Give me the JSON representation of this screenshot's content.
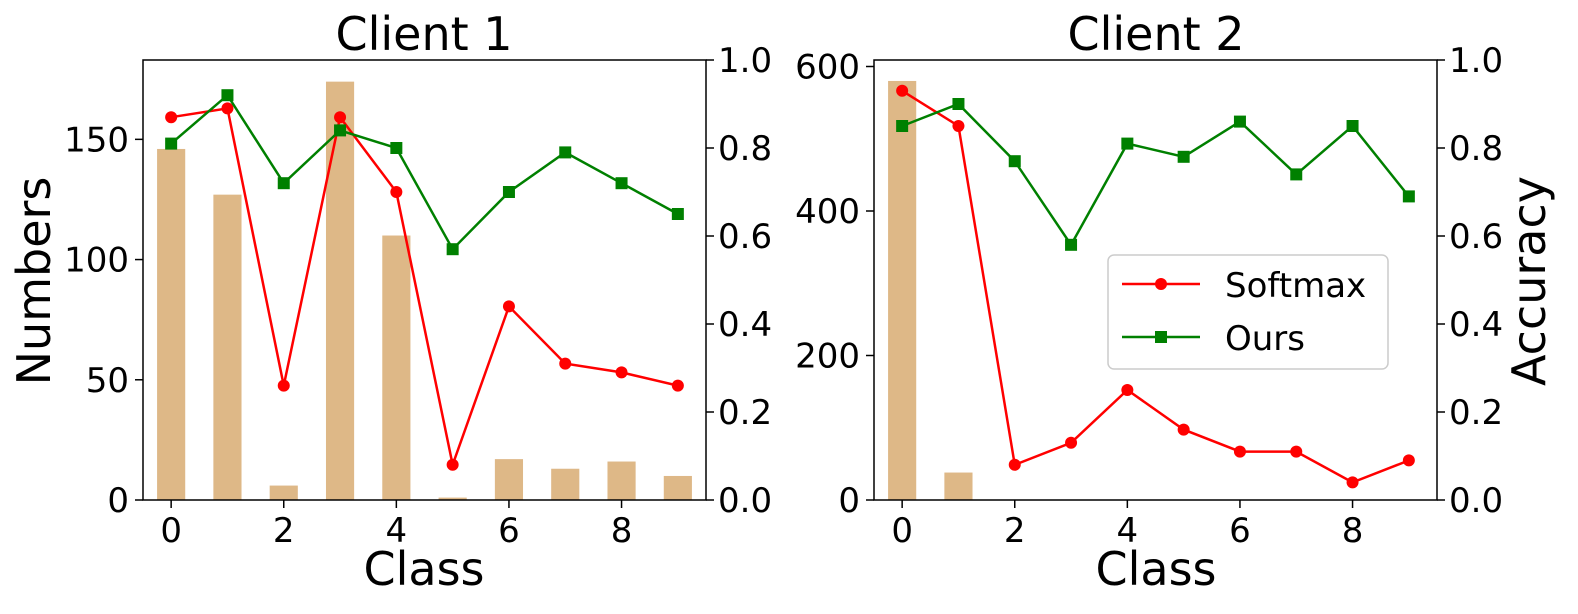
{
  "figure": {
    "legend": {
      "entries": [
        {
          "label": "Softmax",
          "color": "#ff0000",
          "marker": "circle"
        },
        {
          "label": "Ours",
          "color": "#008000",
          "marker": "square"
        }
      ]
    }
  },
  "colors": {
    "bars": "#deb887",
    "softmax": "#ff0000",
    "ours": "#008000"
  },
  "chart_data": [
    {
      "type": "bar+line",
      "title": "Client 1",
      "xlabel": "Class",
      "ylabel": "Numbers",
      "y2label": "",
      "categories": [
        0,
        1,
        2,
        3,
        4,
        5,
        6,
        7,
        8,
        9
      ],
      "xticks": [
        "0",
        "2",
        "4",
        "6",
        "8"
      ],
      "ylim": [
        0,
        183
      ],
      "yticks": [
        "0",
        "50",
        "100",
        "150"
      ],
      "y2lim": [
        0,
        1.0
      ],
      "y2ticks": [
        "0.0",
        "0.2",
        "0.4",
        "0.6",
        "0.8",
        "1.0"
      ],
      "bars": {
        "name": "Numbers",
        "values": [
          146,
          127,
          6,
          174,
          110,
          1,
          17,
          13,
          16,
          10
        ]
      },
      "series": [
        {
          "name": "Softmax",
          "axis": "right",
          "values": [
            0.87,
            0.89,
            0.26,
            0.87,
            0.7,
            0.08,
            0.44,
            0.31,
            0.29,
            0.26
          ]
        },
        {
          "name": "Ours",
          "axis": "right",
          "values": [
            0.81,
            0.92,
            0.72,
            0.84,
            0.8,
            0.57,
            0.7,
            0.79,
            0.72,
            0.65
          ]
        }
      ],
      "legend": false
    },
    {
      "type": "bar+line",
      "title": "Client 2",
      "xlabel": "Class",
      "ylabel": "",
      "y2label": "Accuracy",
      "categories": [
        0,
        1,
        2,
        3,
        4,
        5,
        6,
        7,
        8,
        9
      ],
      "xticks": [
        "0",
        "2",
        "4",
        "6",
        "8"
      ],
      "ylim": [
        0,
        609
      ],
      "yticks": [
        "0",
        "200",
        "400",
        "600"
      ],
      "y2lim": [
        0,
        1.0
      ],
      "y2ticks": [
        "0.0",
        "0.2",
        "0.4",
        "0.6",
        "0.8",
        "1.0"
      ],
      "bars": {
        "name": "Numbers",
        "values": [
          580,
          38,
          0,
          0,
          0,
          0,
          0,
          0,
          0,
          0
        ]
      },
      "series": [
        {
          "name": "Softmax",
          "axis": "right",
          "values": [
            0.93,
            0.85,
            0.08,
            0.13,
            0.25,
            0.16,
            0.11,
            0.11,
            0.04,
            0.09
          ]
        },
        {
          "name": "Ours",
          "axis": "right",
          "values": [
            0.85,
            0.9,
            0.77,
            0.58,
            0.81,
            0.78,
            0.86,
            0.74,
            0.85,
            0.69
          ]
        }
      ],
      "legend": true,
      "legend_position": "center-right"
    }
  ]
}
